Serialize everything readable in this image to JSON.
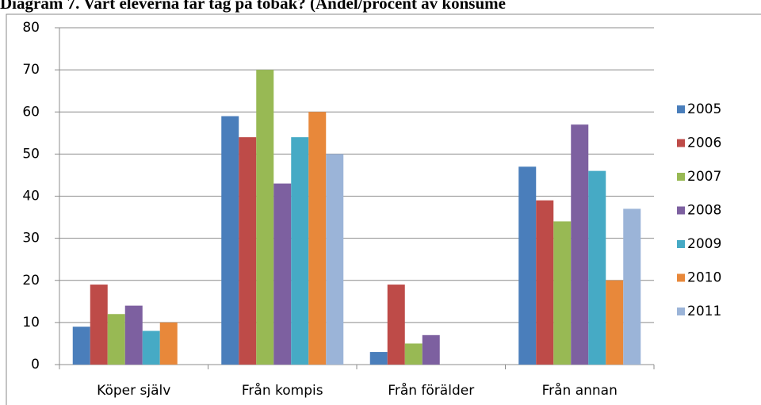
{
  "chart_data": {
    "type": "bar",
    "title": "Diagram 7. Vart eleverna får tag på tobak? (Andel/procent av konsume",
    "categories": [
      "Köper själv",
      "Från kompis",
      "Från förälder",
      "Från annan"
    ],
    "series": [
      {
        "name": "2005",
        "color": "#4a7ebb",
        "values": [
          9,
          59,
          3,
          47
        ]
      },
      {
        "name": "2006",
        "color": "#be4b48",
        "values": [
          19,
          54,
          19,
          39
        ]
      },
      {
        "name": "2007",
        "color": "#98b954",
        "values": [
          12,
          70,
          5,
          34
        ]
      },
      {
        "name": "2008",
        "color": "#7d60a0",
        "values": [
          14,
          43,
          7,
          57
        ]
      },
      {
        "name": "2009",
        "color": "#46aac5",
        "values": [
          8,
          54,
          null,
          46
        ]
      },
      {
        "name": "2010",
        "color": "#e8883a",
        "values": [
          10,
          60,
          null,
          20
        ]
      },
      {
        "name": "2011",
        "color": "#9bb4d8",
        "values": [
          null,
          50,
          null,
          37
        ]
      }
    ],
    "ylim": [
      0,
      80
    ],
    "yticks": [
      0,
      10,
      20,
      30,
      40,
      50,
      60,
      70,
      80
    ],
    "grid": true,
    "legend": "right"
  }
}
